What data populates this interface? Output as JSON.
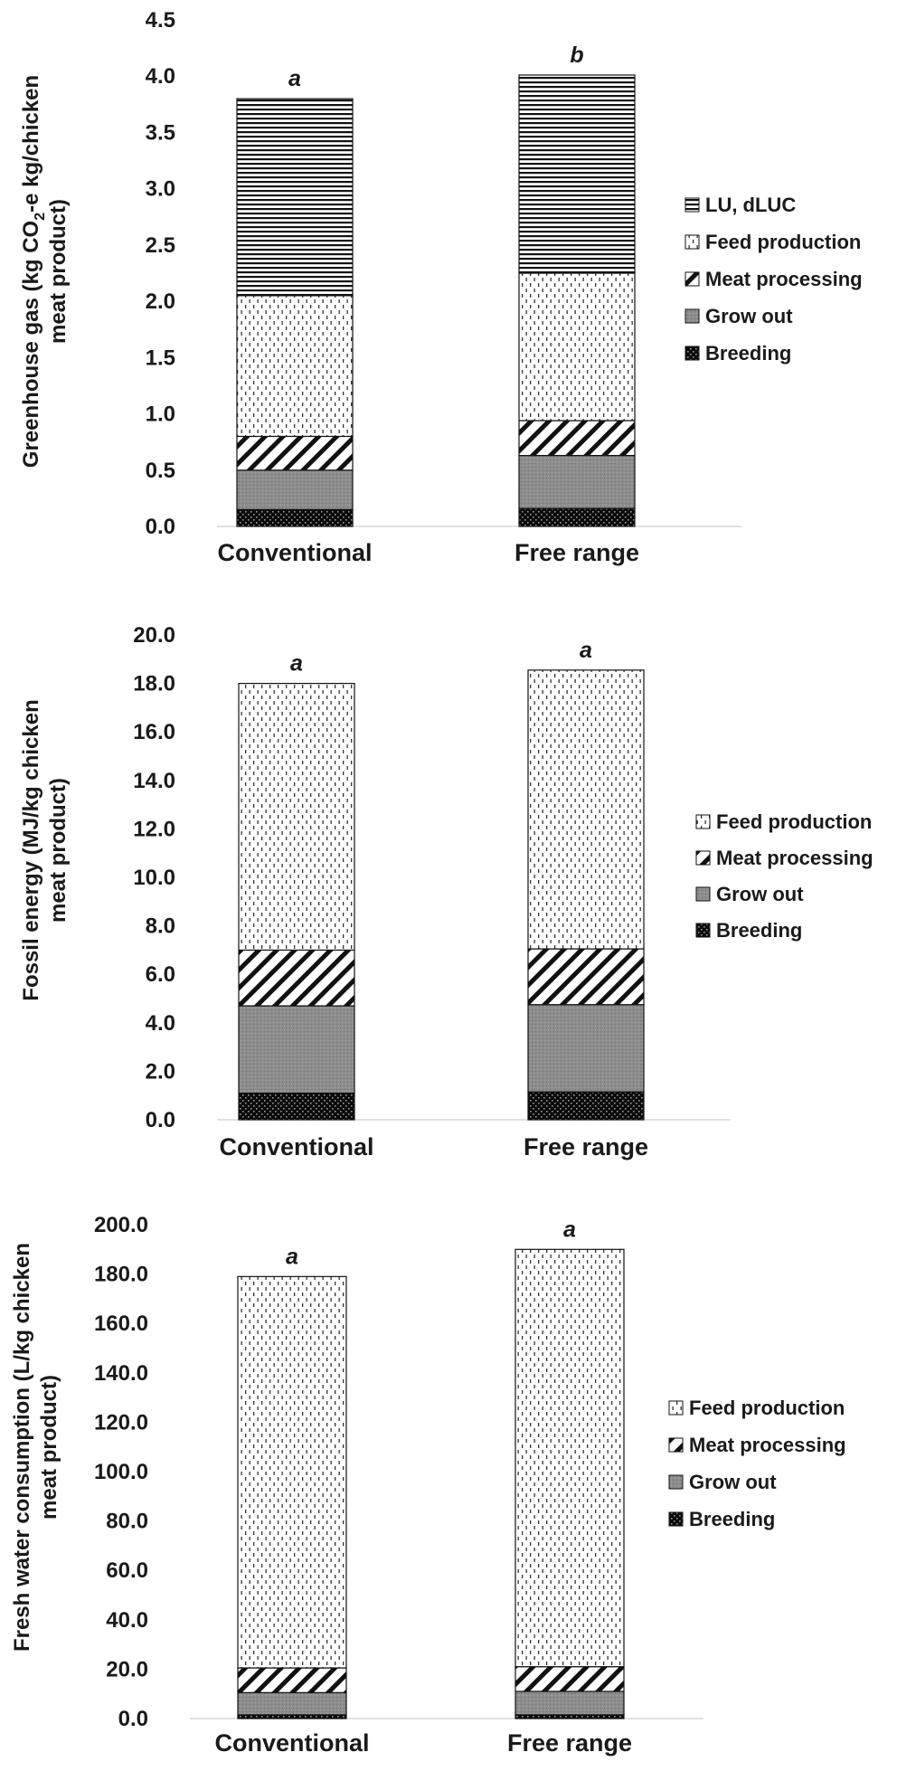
{
  "chart_data": [
    {
      "type": "bar",
      "stacked": true,
      "categories": [
        "Conventional",
        "Free range"
      ],
      "ylabel": "Greenhouse gas (kg CO₂-e kg/chicken meat product)",
      "ylabel_lines": [
        "Greenhouse gas (kg CO",
        "2",
        "-e kg/chicken",
        "meat product)"
      ],
      "ylim": [
        0,
        4.5
      ],
      "ytick_step": 0.5,
      "ytick_decimals": 1,
      "legend_position": "right",
      "series": [
        {
          "name": "Breeding",
          "pattern": "dots",
          "values": [
            0.15,
            0.16
          ]
        },
        {
          "name": "Grow out",
          "pattern": "gray",
          "values": [
            0.35,
            0.47
          ]
        },
        {
          "name": "Meat processing",
          "pattern": "diag",
          "values": [
            0.3,
            0.31
          ]
        },
        {
          "name": "Feed production",
          "pattern": "dashes",
          "values": [
            1.25,
            1.31
          ]
        },
        {
          "name": "LU, dLUC",
          "pattern": "hlines",
          "values": [
            1.75,
            1.76
          ]
        }
      ],
      "significance": [
        "a",
        "b"
      ]
    },
    {
      "type": "bar",
      "stacked": true,
      "categories": [
        "Conventional",
        "Free range"
      ],
      "ylabel": "Fossil energy (MJ/kg chicken meat product)",
      "ylabel_lines": [
        "Fossil energy (MJ/kg chicken",
        "meat product)"
      ],
      "ylim": [
        0,
        20
      ],
      "ytick_step": 2,
      "ytick_decimals": 1,
      "legend_position": "right",
      "series": [
        {
          "name": "Breeding",
          "pattern": "dots",
          "values": [
            1.1,
            1.15
          ]
        },
        {
          "name": "Grow out",
          "pattern": "gray",
          "values": [
            3.6,
            3.6
          ]
        },
        {
          "name": "Meat processing",
          "pattern": "diag",
          "values": [
            2.3,
            2.3
          ]
        },
        {
          "name": "Feed production",
          "pattern": "dashes",
          "values": [
            11.0,
            11.5
          ]
        }
      ],
      "significance": [
        "a",
        "a"
      ]
    },
    {
      "type": "bar",
      "stacked": true,
      "categories": [
        "Conventional",
        "Free range"
      ],
      "ylabel": "Fresh water consumption (L/kg chicken meat product)",
      "ylabel_lines": [
        "Fresh water consumption (L/kg chicken",
        "meat product)"
      ],
      "ylim": [
        0,
        200
      ],
      "ytick_step": 20,
      "ytick_decimals": 1,
      "legend_position": "right",
      "series": [
        {
          "name": "Breeding",
          "pattern": "dots",
          "values": [
            1.5,
            1.5
          ]
        },
        {
          "name": "Grow out",
          "pattern": "gray",
          "values": [
            9.0,
            9.5
          ]
        },
        {
          "name": "Meat processing",
          "pattern": "diag",
          "values": [
            10.0,
            10.0
          ]
        },
        {
          "name": "Feed production",
          "pattern": "dashes",
          "values": [
            158.5,
            169.0
          ]
        }
      ],
      "significance": [
        "a",
        "a"
      ]
    }
  ]
}
